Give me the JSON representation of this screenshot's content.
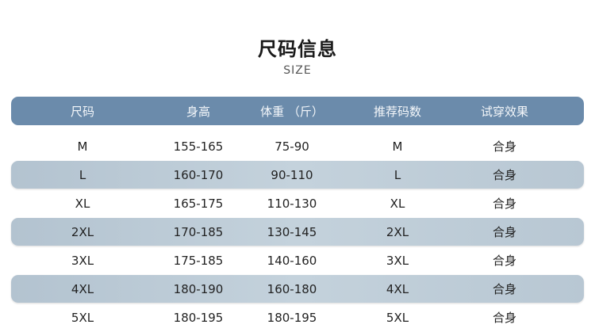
{
  "title": "尺码信息",
  "subtitle": "SIZE",
  "colors": {
    "header": "#6b8bab",
    "stripe": "#bccbd6"
  },
  "table": {
    "headers": [
      "尺码",
      "身高",
      "体重 （斤）",
      "推荐码数",
      "试穿效果"
    ],
    "rows": [
      [
        "M",
        "155-165",
        "75-90",
        "M",
        "合身"
      ],
      [
        "L",
        "160-170",
        "90-110",
        "L",
        "合身"
      ],
      [
        "XL",
        "165-175",
        "110-130",
        "XL",
        "合身"
      ],
      [
        "2XL",
        "170-185",
        "130-145",
        "2XL",
        "合身"
      ],
      [
        "3XL",
        "175-185",
        "140-160",
        "3XL",
        "合身"
      ],
      [
        "4XL",
        "180-190",
        "160-180",
        "4XL",
        "合身"
      ],
      [
        "5XL",
        "180-195",
        "180-195",
        "5XL",
        "合身"
      ]
    ]
  }
}
